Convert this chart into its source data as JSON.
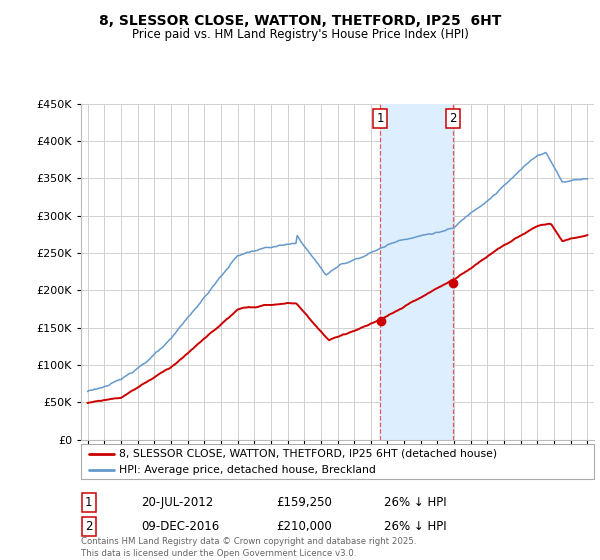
{
  "title": "8, SLESSOR CLOSE, WATTON, THETFORD, IP25  6HT",
  "subtitle": "Price paid vs. HM Land Registry's House Price Index (HPI)",
  "legend_line1": "8, SLESSOR CLOSE, WATTON, THETFORD, IP25 6HT (detached house)",
  "legend_line2": "HPI: Average price, detached house, Breckland",
  "sale1_date": "20-JUL-2012",
  "sale1_price": "£159,250",
  "sale1_hpi": "26% ↓ HPI",
  "sale1_year": 2012.55,
  "sale1_value": 159250,
  "sale2_date": "09-DEC-2016",
  "sale2_price": "£210,000",
  "sale2_hpi": "26% ↓ HPI",
  "sale2_year": 2016.92,
  "sale2_value": 210000,
  "footer": "Contains HM Land Registry data © Crown copyright and database right 2025.\nThis data is licensed under the Open Government Licence v3.0.",
  "line_color_red": "#cc0000",
  "line_color_blue": "#6699cc",
  "shade_color": "#ddeeff",
  "vline_color": "#dd4444",
  "ylim": [
    0,
    450000
  ],
  "xlim_start": 1994.6,
  "xlim_end": 2025.4
}
